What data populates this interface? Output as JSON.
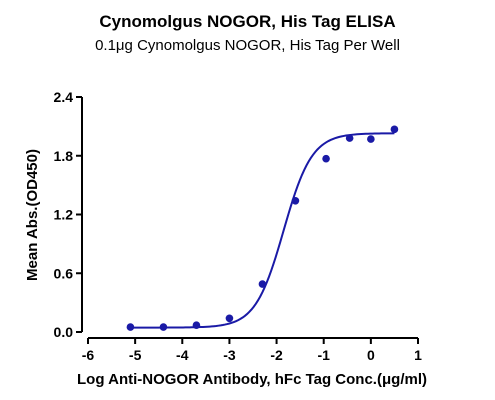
{
  "chart_data": {
    "type": "scatter",
    "title": "Cynomolgus NOGOR, His Tag ELISA",
    "subtitle": "0.1μg Cynomolgus NOGOR, His Tag Per Well",
    "xlabel": "Log Anti-NOGOR Antibody, hFc Tag Conc.(μg/ml)",
    "ylabel": "Mean Abs.(OD450)",
    "xlim": [
      -6,
      1
    ],
    "ylim": [
      0,
      2.4
    ],
    "x_ticks": [
      -6,
      -5,
      -4,
      -3,
      -2,
      -1,
      0,
      1
    ],
    "x_tick_labels": [
      "-6",
      "-5",
      "-4",
      "-3",
      "-2",
      "-1",
      "0",
      "1"
    ],
    "y_ticks": [
      0,
      0.6,
      1.2,
      1.8,
      2.4
    ],
    "y_tick_labels": [
      "0.0",
      "0.6",
      "1.2",
      "1.8",
      "2.4"
    ],
    "grid": false,
    "color": "#1a1aa6",
    "series": [
      {
        "points": [
          {
            "x": -5.1,
            "y": 0.05
          },
          {
            "x": -4.4,
            "y": 0.05
          },
          {
            "x": -3.7,
            "y": 0.07
          },
          {
            "x": -3.0,
            "y": 0.14
          },
          {
            "x": -2.3,
            "y": 0.49
          },
          {
            "x": -1.6,
            "y": 1.34
          },
          {
            "x": -0.95,
            "y": 1.77
          },
          {
            "x": -0.45,
            "y": 1.98
          },
          {
            "x": 0.0,
            "y": 1.97
          },
          {
            "x": 0.5,
            "y": 2.07
          }
        ],
        "fit": {
          "model": "4PL",
          "bottom": 0.045,
          "top": 2.03,
          "logEC50": -1.85,
          "hill": 1.45,
          "x_range": [
            -5.1,
            0.5
          ]
        }
      }
    ]
  }
}
